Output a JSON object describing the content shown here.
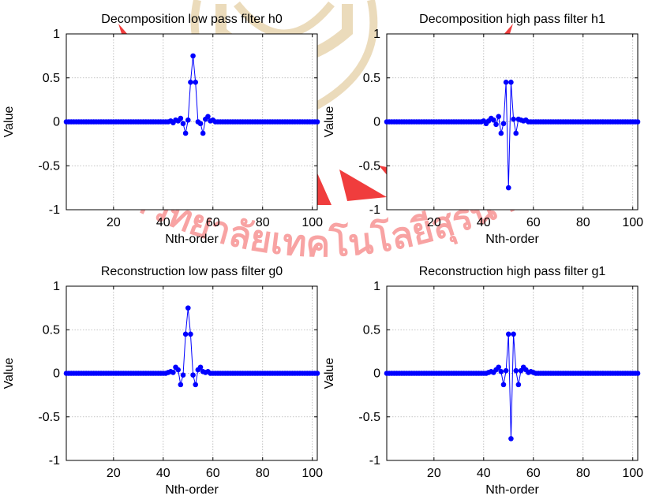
{
  "figure": {
    "watermark": {
      "color": "#ee1c1c",
      "gold": "#d4b06a",
      "text": "มหาวิทยาลัยเทคโนโลยีสุรนารี"
    }
  },
  "chart_data": [
    {
      "type": "line",
      "title": "Decomposition low pass filter h0",
      "xlabel": "Nth-order",
      "ylabel": "Value",
      "xlim": [
        1,
        102
      ],
      "ylim": [
        -1,
        1
      ],
      "xticks": [
        20,
        40,
        60,
        80,
        100
      ],
      "yticks": [
        -1,
        -0.5,
        0,
        0.5,
        1
      ],
      "grid": true,
      "marker": "circle",
      "color": "#0000ff",
      "x_range": [
        1,
        102
      ],
      "nonzero": [
        [
          43,
          0.01
        ],
        [
          44,
          -0.01
        ],
        [
          45,
          0.02
        ],
        [
          46,
          0.01
        ],
        [
          47,
          0.04
        ],
        [
          48,
          -0.02
        ],
        [
          49,
          -0.13
        ],
        [
          50,
          0.02
        ],
        [
          51,
          0.45
        ],
        [
          52,
          0.75
        ],
        [
          53,
          0.45
        ],
        [
          54,
          0.0
        ],
        [
          55,
          -0.02
        ],
        [
          56,
          -0.13
        ],
        [
          57,
          0.03
        ],
        [
          58,
          0.06
        ],
        [
          59,
          0.01
        ],
        [
          60,
          0.02
        ],
        [
          61,
          0.0
        ]
      ]
    },
    {
      "type": "line",
      "title": "Decomposition high pass filter h1",
      "xlabel": "Nth-order",
      "ylabel": "Value",
      "xlim": [
        1,
        102
      ],
      "ylim": [
        -1,
        1
      ],
      "xticks": [
        20,
        40,
        60,
        80,
        100
      ],
      "yticks": [
        -1,
        -0.5,
        0,
        0.5,
        1
      ],
      "grid": true,
      "marker": "circle",
      "color": "#0000ff",
      "x_range": [
        1,
        102
      ],
      "nonzero": [
        [
          40,
          0.01
        ],
        [
          41,
          -0.02
        ],
        [
          42,
          0.01
        ],
        [
          43,
          0.04
        ],
        [
          44,
          0.02
        ],
        [
          45,
          -0.03
        ],
        [
          46,
          0.06
        ],
        [
          47,
          -0.13
        ],
        [
          48,
          -0.02
        ],
        [
          49,
          0.45
        ],
        [
          50,
          -0.75
        ],
        [
          51,
          0.45
        ],
        [
          52,
          0.03
        ],
        [
          53,
          -0.13
        ],
        [
          54,
          0.03
        ],
        [
          55,
          0.02
        ],
        [
          56,
          0.01
        ],
        [
          57,
          0.02
        ],
        [
          58,
          0.0
        ]
      ]
    },
    {
      "type": "line",
      "title": "Reconstruction low pass filter g0",
      "xlabel": "Nth-order",
      "ylabel": "Value",
      "xlim": [
        1,
        102
      ],
      "ylim": [
        -1,
        1
      ],
      "xticks": [
        20,
        40,
        60,
        80,
        100
      ],
      "yticks": [
        -1,
        -0.5,
        0,
        0.5,
        1
      ],
      "grid": true,
      "marker": "circle",
      "color": "#0000ff",
      "x_range": [
        1,
        102
      ],
      "nonzero": [
        [
          42,
          0.01
        ],
        [
          43,
          0.02
        ],
        [
          44,
          0.01
        ],
        [
          45,
          0.07
        ],
        [
          46,
          0.04
        ],
        [
          47,
          -0.13
        ],
        [
          48,
          -0.02
        ],
        [
          49,
          0.45
        ],
        [
          50,
          0.75
        ],
        [
          51,
          0.45
        ],
        [
          52,
          -0.02
        ],
        [
          53,
          -0.13
        ],
        [
          54,
          0.04
        ],
        [
          55,
          0.07
        ],
        [
          56,
          0.02
        ],
        [
          57,
          0.01
        ],
        [
          58,
          0.02
        ]
      ]
    },
    {
      "type": "line",
      "title": "Reconstruction high pass filter g1",
      "xlabel": "Nth-order",
      "ylabel": "Value",
      "xlim": [
        1,
        102
      ],
      "ylim": [
        -1,
        1
      ],
      "xticks": [
        20,
        40,
        60,
        80,
        100
      ],
      "yticks": [
        -1,
        -0.5,
        0,
        0.5,
        1
      ],
      "grid": true,
      "marker": "circle",
      "color": "#0000ff",
      "x_range": [
        1,
        102
      ],
      "nonzero": [
        [
          41,
          0.0
        ],
        [
          42,
          0.01
        ],
        [
          43,
          0.02
        ],
        [
          44,
          0.01
        ],
        [
          45,
          0.04
        ],
        [
          46,
          0.07
        ],
        [
          47,
          0.02
        ],
        [
          48,
          -0.13
        ],
        [
          49,
          0.03
        ],
        [
          50,
          0.45
        ],
        [
          51,
          -0.75
        ],
        [
          52,
          0.45
        ],
        [
          53,
          0.03
        ],
        [
          54,
          -0.13
        ],
        [
          55,
          0.03
        ],
        [
          56,
          0.07
        ],
        [
          57,
          0.04
        ],
        [
          58,
          0.01
        ],
        [
          59,
          0.02
        ],
        [
          60,
          0.01
        ]
      ]
    }
  ]
}
